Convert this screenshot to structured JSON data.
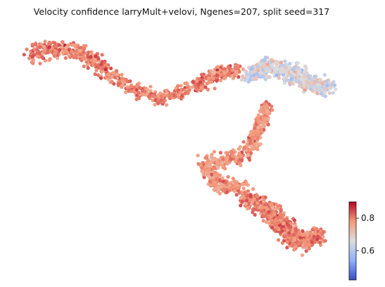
{
  "chart_data": {
    "type": "scatter",
    "title": "Velocity confidence larryMult+velovi, Ngenes=207, split seed=317",
    "xlabel": "",
    "ylabel": "",
    "axes_visible": false,
    "grid": false,
    "colormap": "coolwarm",
    "colorbar": {
      "location": "right",
      "range": [
        0.42,
        0.9
      ],
      "ticks": [
        0.6,
        0.8
      ],
      "tick_labels": [
        "0.6",
        "0.8"
      ]
    },
    "regions": [
      {
        "name": "upper-left arm",
        "value_mean": 0.8,
        "x": [
          0.05,
          0.42
        ],
        "y": [
          0.62,
          0.9
        ]
      },
      {
        "name": "upper-right cluster",
        "value_mean": 0.66,
        "x": [
          0.63,
          0.98
        ],
        "y": [
          0.5,
          0.82
        ]
      },
      {
        "name": "middle stem",
        "value_mean": 0.78,
        "x": [
          0.46,
          0.8
        ],
        "y": [
          0.18,
          0.58
        ]
      },
      {
        "name": "bottom blob",
        "value_mean": 0.8,
        "x": [
          0.62,
          0.95
        ],
        "y": [
          0.02,
          0.3
        ]
      }
    ],
    "colors": {
      "low": "#3b4cc0",
      "mid": "#dddddd",
      "high": "#b40426"
    }
  }
}
